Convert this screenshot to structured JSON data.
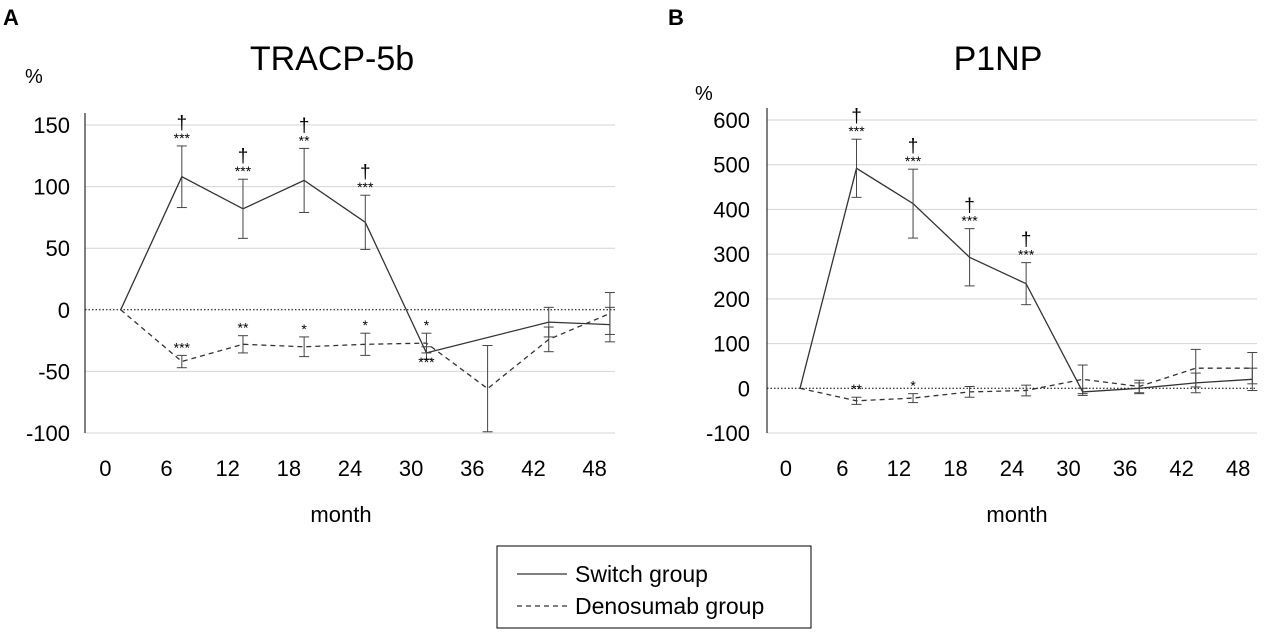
{
  "legend": {
    "entries": [
      {
        "label": "Switch group",
        "style": "solid"
      },
      {
        "label": "Denosumab group",
        "style": "dashed"
      }
    ]
  },
  "chart_data": [
    {
      "panel": "A",
      "type": "line",
      "title": "TRACP-5b",
      "ylabel": "%",
      "xlabel": "month",
      "x_ticks": [
        0,
        6,
        12,
        18,
        24,
        30,
        36,
        42,
        48
      ],
      "y_ticks": [
        150,
        100,
        50,
        0,
        -50,
        -100
      ],
      "xlim": [
        -2,
        50
      ],
      "ylim": [
        -100,
        160
      ],
      "zero_line": "dotted",
      "gridlines": "horizontal",
      "series": [
        {
          "name": "Switch group",
          "style": "solid",
          "x": [
            1.5,
            7.5,
            13.5,
            19.5,
            25.5,
            31.5,
            43.5,
            49.5
          ],
          "y": [
            0,
            108,
            82,
            105,
            71,
            -35,
            -10,
            -12
          ],
          "err": [
            0,
            25,
            24,
            26,
            22,
            5,
            12,
            14
          ],
          "annotations": [
            {
              "x": 7.5,
              "stars": "***",
              "dagger": "†"
            },
            {
              "x": 13.5,
              "stars": "***",
              "dagger": "†"
            },
            {
              "x": 19.5,
              "stars": "**",
              "dagger": "†"
            },
            {
              "x": 25.5,
              "stars": "***",
              "dagger": "†"
            }
          ]
        },
        {
          "name": "Denosumab group",
          "style": "dashed",
          "x": [
            1.5,
            7.5,
            13.5,
            19.5,
            25.5,
            31.5,
            37.5,
            43.5,
            49.5
          ],
          "y": [
            0,
            -42,
            -28,
            -30,
            -28,
            -27,
            -64,
            -24,
            -3
          ],
          "err": [
            0,
            5,
            7,
            8,
            9,
            8,
            35,
            10,
            17
          ],
          "annotations": [
            {
              "x": 7.5,
              "stars": "***"
            },
            {
              "x": 13.5,
              "stars": "**"
            },
            {
              "x": 19.5,
              "stars": "*"
            },
            {
              "x": 25.5,
              "stars": "*"
            },
            {
              "x": 31.5,
              "stars": "*"
            },
            {
              "x": 31.5,
              "stars": "***",
              "position": "below"
            }
          ]
        }
      ]
    },
    {
      "panel": "B",
      "type": "line",
      "title": "P1NP",
      "ylabel": "%",
      "xlabel": "month",
      "x_ticks": [
        0,
        6,
        12,
        18,
        24,
        30,
        36,
        42,
        48
      ],
      "y_ticks": [
        600,
        500,
        400,
        300,
        200,
        100,
        0,
        -100
      ],
      "xlim": [
        -2,
        50
      ],
      "ylim": [
        -100,
        620
      ],
      "zero_line": "dotted",
      "gridlines": "horizontal",
      "series": [
        {
          "name": "Switch group",
          "style": "solid",
          "x": [
            1.5,
            7.5,
            13.5,
            19.5,
            25.5,
            31.5,
            37.5,
            43.5,
            49.5
          ],
          "y": [
            0,
            492,
            413,
            293,
            234,
            -8,
            0,
            12,
            20
          ],
          "err": [
            0,
            65,
            77,
            64,
            47,
            8,
            12,
            22,
            25
          ],
          "annotations": [
            {
              "x": 7.5,
              "stars": "***",
              "dagger": "†"
            },
            {
              "x": 13.5,
              "stars": "***",
              "dagger": "†"
            },
            {
              "x": 19.5,
              "stars": "***",
              "dagger": "†"
            },
            {
              "x": 25.5,
              "stars": "***",
              "dagger": "†"
            }
          ]
        },
        {
          "name": "Denosumab group",
          "style": "dashed",
          "x": [
            1.5,
            7.5,
            13.5,
            19.5,
            25.5,
            31.5,
            37.5,
            43.5,
            49.5
          ],
          "y": [
            0,
            -28,
            -22,
            -8,
            -5,
            20,
            4,
            45,
            45
          ],
          "err": [
            0,
            8,
            10,
            12,
            12,
            32,
            14,
            42,
            35
          ],
          "annotations": [
            {
              "x": 7.5,
              "stars": "**"
            },
            {
              "x": 13.5,
              "stars": "*"
            }
          ]
        }
      ]
    }
  ]
}
